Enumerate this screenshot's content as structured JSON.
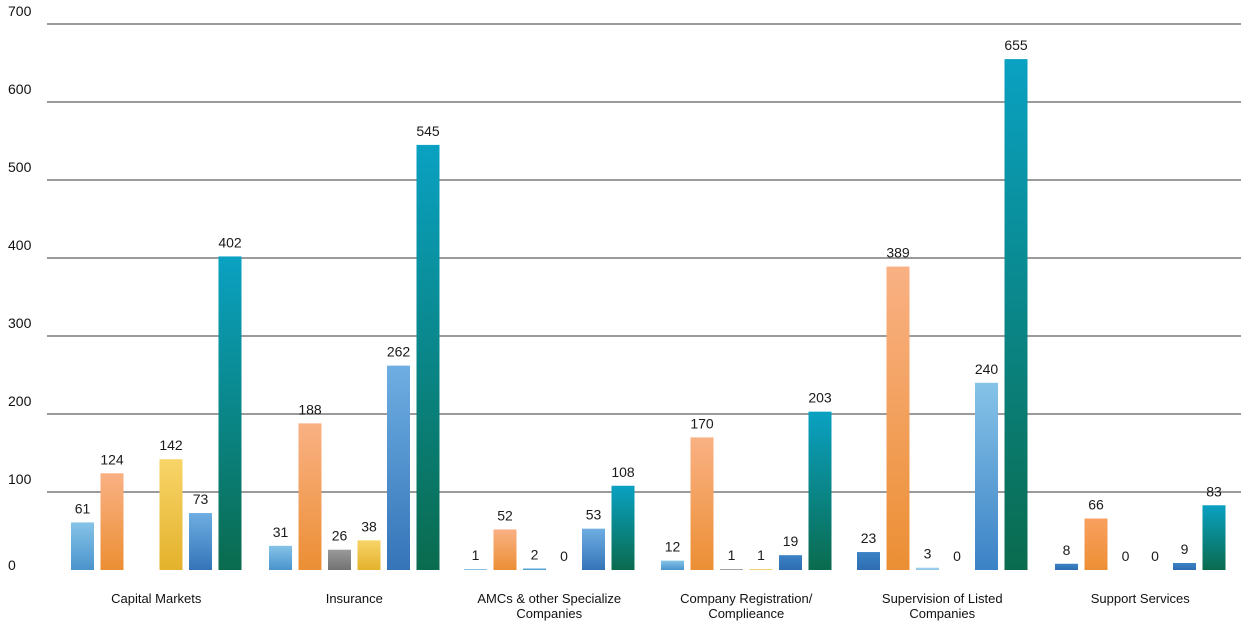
{
  "chart_data": {
    "type": "bar",
    "title": "",
    "xlabel": "",
    "ylabel": "",
    "ylim": [
      0,
      700
    ],
    "yticks": [
      0,
      100,
      200,
      300,
      400,
      500,
      600,
      700
    ],
    "grid": true,
    "legend": "none",
    "categories": [
      [
        "Capital Markets"
      ],
      [
        "Insurance"
      ],
      [
        "AMCs & other Specialize",
        "Companies"
      ],
      [
        "Company Registration/",
        "Complieance"
      ],
      [
        "Supervision of Listed",
        "Companies"
      ],
      [
        "Support Services"
      ]
    ],
    "series": [
      {
        "values": [
          61,
          31,
          1,
          12,
          23,
          8
        ],
        "color": "light-blue"
      },
      {
        "values": [
          124,
          188,
          52,
          170,
          389,
          66
        ],
        "color": "orange"
      },
      {
        "values": [
          null,
          26,
          2,
          1,
          3,
          0
        ],
        "color": "gray / pale blue"
      },
      {
        "values": [
          142,
          38,
          0,
          1,
          0,
          0
        ],
        "color": "yellow"
      },
      {
        "values": [
          73,
          262,
          53,
          19,
          240,
          9
        ],
        "color": "blue"
      },
      {
        "values": [
          402,
          545,
          108,
          203,
          655,
          83
        ],
        "color": "teal"
      }
    ],
    "bar_colors": [
      [
        [
          "#86c3e8",
          "#4a94cc"
        ],
        [
          "#f9b184",
          "#ec8f34"
        ],
        [
          "#9a9a9a",
          "#727272"
        ],
        [
          "#f8d468",
          "#e4b22c"
        ],
        [
          "#6eaee2",
          "#3574b8"
        ],
        [
          "#0aa1c2",
          "#0a6b4e"
        ]
      ],
      [
        [
          "#86c3e8",
          "#4a94cc"
        ],
        [
          "#f9b184",
          "#ec8f34"
        ],
        [
          "#9a9a9a",
          "#727272"
        ],
        [
          "#f8d468",
          "#e4b22c"
        ],
        [
          "#6eaee2",
          "#3574b8"
        ],
        [
          "#0aa1c2",
          "#0a6b4e"
        ]
      ],
      [
        [
          "#86c3e8",
          "#4a94cc"
        ],
        [
          "#f9b184",
          "#ec8f34"
        ],
        [
          "#6fb8e0",
          "#4a94cc"
        ],
        [
          "#f8d468",
          "#e4b22c"
        ],
        [
          "#6eaee2",
          "#3574b8"
        ],
        [
          "#0aa1c2",
          "#0a6b4e"
        ]
      ],
      [
        [
          "#86c3e8",
          "#4a94cc"
        ],
        [
          "#f9b184",
          "#ec8f34"
        ],
        [
          "#9a9a9a",
          "#727272"
        ],
        [
          "#f8d468",
          "#e4b22c"
        ],
        [
          "#3b82c6",
          "#2e6db0"
        ],
        [
          "#0aa1c2",
          "#0a6b4e"
        ]
      ],
      [
        [
          "#3b82c6",
          "#2e6db0"
        ],
        [
          "#f9b184",
          "#ec8f34"
        ],
        [
          "#a8d8ec",
          "#86c3e8"
        ],
        [
          "#f8d468",
          "#e4b22c"
        ],
        [
          "#86c3e8",
          "#3b82c6"
        ],
        [
          "#0aa1c2",
          "#0a6b4e"
        ]
      ],
      [
        [
          "#3b82c6",
          "#2e6db0"
        ],
        [
          "#f9a060",
          "#ec8f34"
        ],
        [
          "#9a9a9a",
          "#727272"
        ],
        [
          "#f8d468",
          "#e4b22c"
        ],
        [
          "#3b82c6",
          "#2e6db0"
        ],
        [
          "#0aa1c2",
          "#0a6b4e"
        ]
      ]
    ]
  }
}
